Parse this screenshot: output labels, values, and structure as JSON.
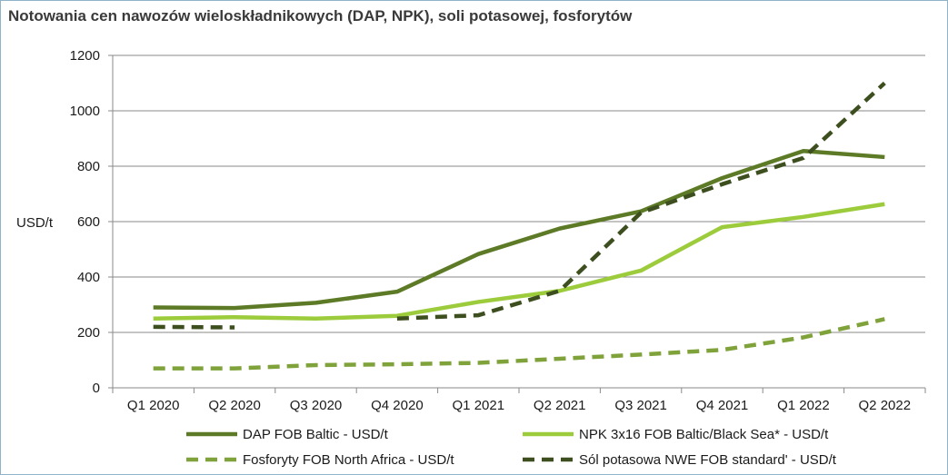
{
  "title": "Notowania cen nawozów wieloskładnikowych (DAP, NPK), soli potasowej, fosforytów",
  "chart_data": {
    "type": "line",
    "title": "Notowania cen nawozów wieloskładnikowych (DAP, NPK), soli potasowej, fosforytów",
    "xlabel": "",
    "ylabel": "USD/t",
    "ylim": [
      0,
      1200
    ],
    "yticks": [
      "0",
      "200",
      "400",
      "600",
      "800",
      "1000",
      "1200"
    ],
    "categories": [
      "Q1 2020",
      "Q2 2020",
      "Q3 2020",
      "Q4 2020",
      "Q1 2021",
      "Q2 2021",
      "Q3 2021",
      "Q4 2021",
      "Q1 2022",
      "Q2 2022"
    ],
    "grid": true,
    "legend_position": "bottom",
    "series": [
      {
        "name": "DAP FOB Baltic - USD/t",
        "color": "#5d7a26",
        "style": "solid",
        "values": [
          290,
          288,
          307,
          347,
          483,
          575,
          637,
          757,
          855,
          833
        ]
      },
      {
        "name": "NPK 3x16 FOB Baltic/Black Sea* - USD/t",
        "color": "#9ccc3c",
        "style": "solid",
        "values": [
          250,
          255,
          250,
          260,
          310,
          350,
          423,
          580,
          617,
          663
        ]
      },
      {
        "name": "Fosforyty FOB North Africa - USD/t",
        "color": "#7fa33a",
        "style": "dashed",
        "values": [
          70,
          70,
          82,
          85,
          90,
          105,
          120,
          137,
          182,
          248
        ]
      },
      {
        "name": "Sól potasowa  NWE FOB standard' - USD/t",
        "color": "#3d4f1e",
        "style": "dashed",
        "values": [
          220,
          218,
          null,
          250,
          262,
          350,
          632,
          735,
          830,
          1100
        ]
      }
    ]
  }
}
